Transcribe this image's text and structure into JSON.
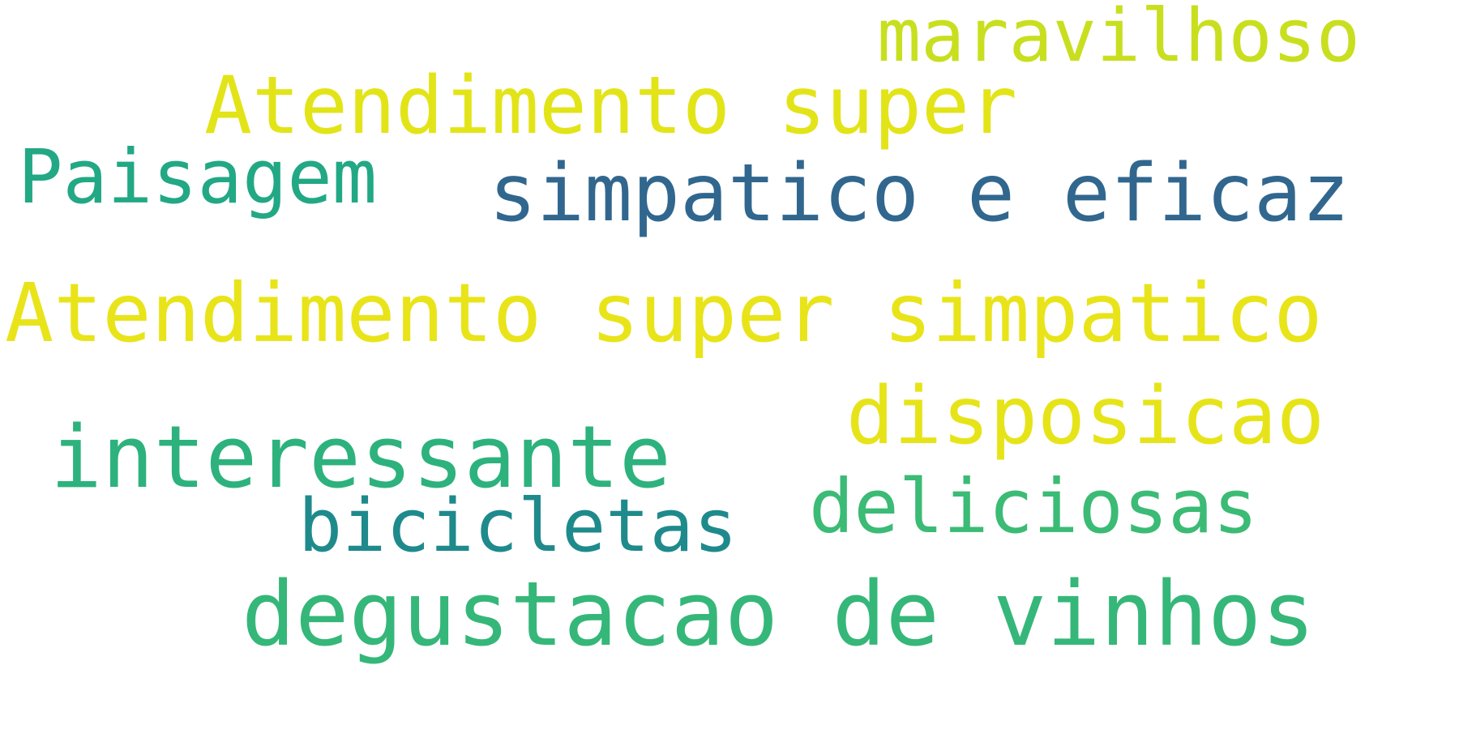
{
  "word_cloud": {
    "words": [
      {
        "key": "maravilhoso",
        "text": "maravilhoso",
        "color": "#c8df1f"
      },
      {
        "key": "atend_super",
        "text": "Atendimento super",
        "color": "#e2e418"
      },
      {
        "key": "paisagem",
        "text": "Paisagem",
        "color": "#22a884"
      },
      {
        "key": "simpatico",
        "text": "simpatico e eficaz",
        "color": "#31678e"
      },
      {
        "key": "atend_full",
        "text": "Atendimento super simpatico",
        "color": "#e8e419"
      },
      {
        "key": "disposicao",
        "text": "disposicao",
        "color": "#e6e419"
      },
      {
        "key": "interessante",
        "text": "interessante",
        "color": "#2db27d"
      },
      {
        "key": "deliciosas",
        "text": "deliciosas",
        "color": "#3bbb75"
      },
      {
        "key": "bicicletas",
        "text": "bicicletas",
        "color": "#1f8a8c"
      },
      {
        "key": "degustacao",
        "text": "degustacao de vinhos",
        "color": "#35b779"
      }
    ]
  }
}
